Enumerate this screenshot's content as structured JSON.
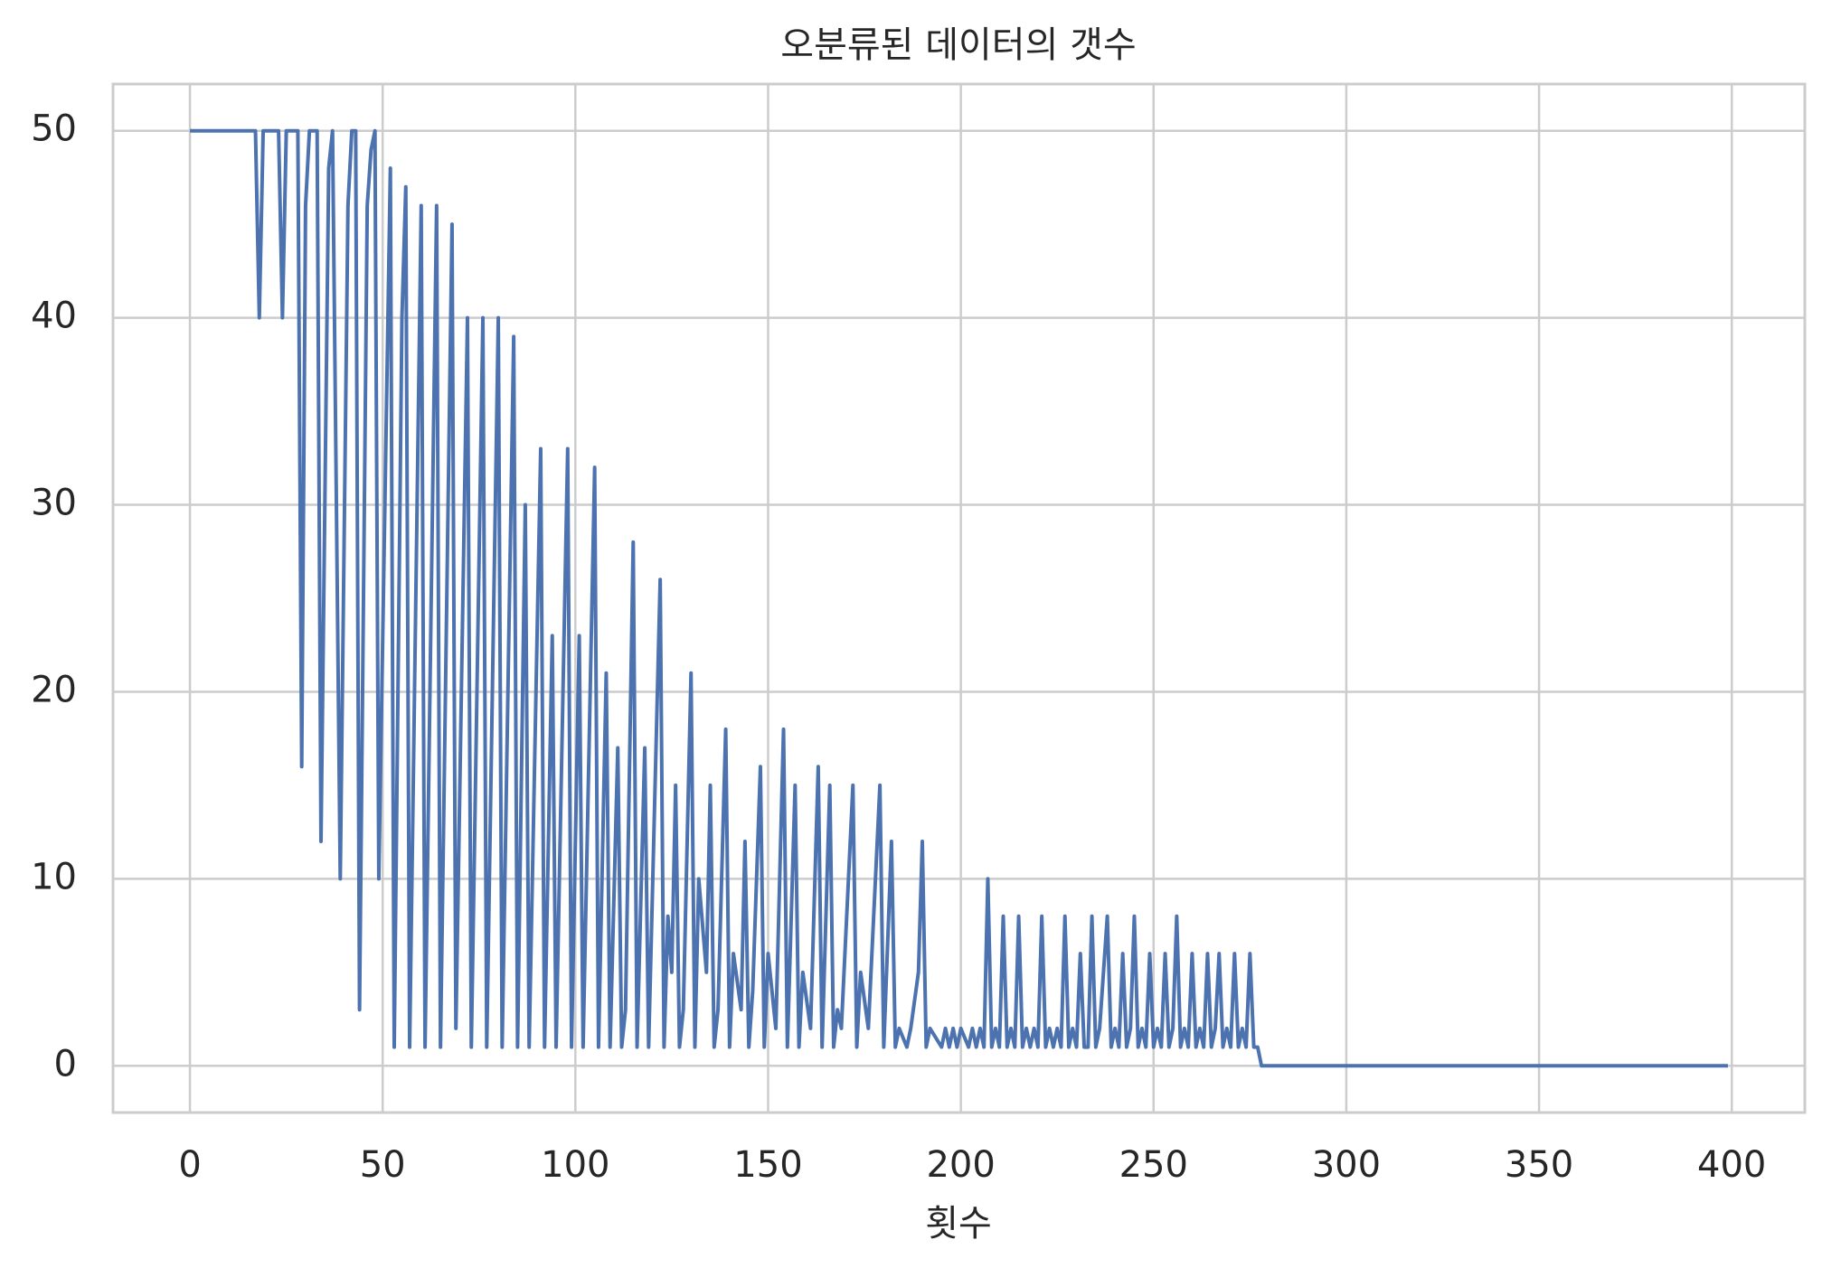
{
  "chart_data": {
    "type": "line",
    "title": "오분류된 데이터의 갯수",
    "x_label": "횟수",
    "x": [
      0,
      17,
      18,
      19,
      23,
      24,
      25,
      28,
      29,
      30,
      31,
      33,
      34,
      36,
      37,
      39,
      41,
      42,
      43,
      44,
      46,
      47,
      48,
      49,
      52,
      53,
      55,
      56,
      57,
      60,
      61,
      64,
      65,
      68,
      69,
      72,
      73,
      76,
      77,
      80,
      81,
      84,
      85,
      87,
      88,
      91,
      92,
      94,
      95,
      98,
      99,
      101,
      102,
      105,
      106,
      108,
      109,
      111,
      112,
      113,
      115,
      116,
      118,
      119,
      122,
      123,
      124,
      125,
      126,
      127,
      128,
      130,
      131,
      132,
      134,
      135,
      136,
      137,
      139,
      140,
      141,
      143,
      144,
      145,
      146,
      148,
      149,
      150,
      152,
      154,
      155,
      157,
      158,
      159,
      161,
      163,
      164,
      166,
      167,
      168,
      169,
      172,
      173,
      174,
      176,
      179,
      180,
      182,
      183,
      184,
      186,
      187,
      189,
      190,
      191,
      192,
      195,
      196,
      197,
      198,
      199,
      200,
      202,
      203,
      204,
      205,
      206,
      207,
      208,
      209,
      210,
      211,
      212,
      213,
      214,
      215,
      216,
      217,
      218,
      219,
      220,
      221,
      222,
      223,
      224,
      225,
      226,
      227,
      228,
      229,
      230,
      231,
      232,
      233,
      234,
      235,
      236,
      238,
      239,
      240,
      241,
      242,
      243,
      244,
      245,
      246,
      247,
      248,
      249,
      250,
      251,
      252,
      253,
      254,
      255,
      256,
      257,
      258,
      259,
      260,
      261,
      262,
      263,
      264,
      265,
      266,
      267,
      268,
      269,
      270,
      271,
      272,
      273,
      274,
      275,
      276,
      277,
      278,
      399
    ],
    "values": [
      50,
      50,
      40,
      50,
      50,
      40,
      50,
      50,
      16,
      46,
      50,
      50,
      12,
      48,
      50,
      10,
      46,
      50,
      50,
      3,
      46,
      49,
      50,
      10,
      48,
      1,
      40,
      47,
      1,
      46,
      1,
      46,
      1,
      45,
      2,
      40,
      1,
      40,
      1,
      40,
      1,
      39,
      1,
      30,
      1,
      33,
      1,
      23,
      1,
      33,
      1,
      23,
      1,
      32,
      1,
      21,
      1,
      17,
      1,
      3,
      28,
      1,
      17,
      1,
      26,
      1,
      8,
      5,
      15,
      1,
      3,
      21,
      1,
      10,
      5,
      15,
      1,
      3,
      18,
      1,
      6,
      3,
      12,
      1,
      4,
      16,
      1,
      6,
      2,
      18,
      1,
      15,
      1,
      5,
      2,
      16,
      1,
      15,
      1,
      3,
      2,
      15,
      1,
      5,
      2,
      15,
      1,
      12,
      1,
      2,
      1,
      2,
      5,
      12,
      1,
      2,
      1,
      2,
      1,
      2,
      1,
      2,
      1,
      2,
      1,
      2,
      1,
      10,
      1,
      2,
      1,
      8,
      1,
      2,
      1,
      8,
      1,
      2,
      1,
      2,
      1,
      8,
      1,
      2,
      1,
      2,
      1,
      8,
      1,
      2,
      1,
      6,
      1,
      1,
      8,
      1,
      2,
      8,
      1,
      2,
      1,
      6,
      1,
      2,
      8,
      1,
      2,
      1,
      6,
      1,
      2,
      1,
      6,
      1,
      2,
      8,
      1,
      2,
      1,
      6,
      1,
      2,
      1,
      6,
      1,
      2,
      6,
      1,
      2,
      1,
      6,
      1,
      2,
      1,
      6,
      1,
      1,
      0,
      0
    ],
    "color": "#4c72b0",
    "xlim": [
      -19.95,
      418.95
    ],
    "xticks": [
      0,
      50,
      100,
      150,
      200,
      250,
      300,
      350,
      400
    ],
    "ylim": [
      -2.5,
      52.5
    ],
    "yticks": [
      0,
      10,
      20,
      30,
      40,
      50
    ],
    "grid": true
  }
}
